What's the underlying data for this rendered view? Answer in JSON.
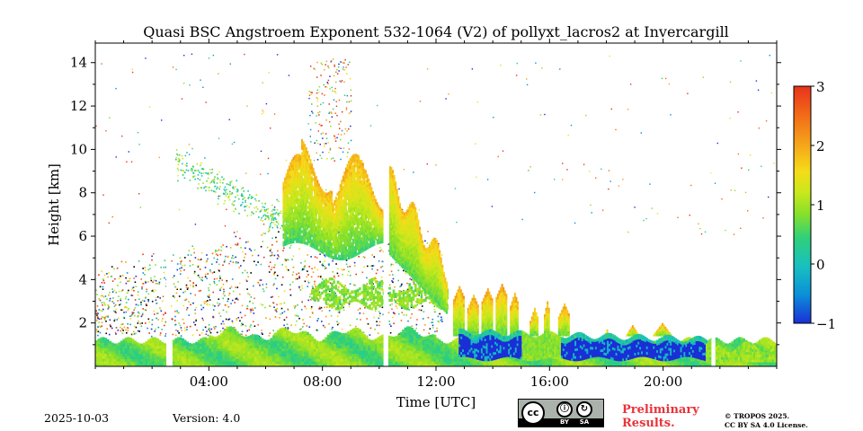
{
  "chart_data": {
    "type": "heatmap",
    "title": "Quasi BSC Angstroem Exponent 532-1064 (V2) of pollyxt_lacros2 at Invercargill",
    "xlabel": "Time [UTC]",
    "ylabel": "Height [km]",
    "x_range_hours": [
      0,
      24
    ],
    "y_range_km": [
      0,
      14.9
    ],
    "x_ticks": [
      {
        "value": 4,
        "label": "04:00"
      },
      {
        "value": 8,
        "label": "08:00"
      },
      {
        "value": 12,
        "label": "12:00"
      },
      {
        "value": 16,
        "label": "16:00"
      },
      {
        "value": 20,
        "label": "20:00"
      }
    ],
    "y_ticks": [
      {
        "value": 2,
        "label": "2"
      },
      {
        "value": 4,
        "label": "4"
      },
      {
        "value": 6,
        "label": "6"
      },
      {
        "value": 8,
        "label": "8"
      },
      {
        "value": 10,
        "label": "10"
      },
      {
        "value": 12,
        "label": "12"
      },
      {
        "value": 14,
        "label": "14"
      }
    ],
    "colorbar": {
      "range": [
        -1,
        3
      ],
      "ticks": [
        {
          "value": -1,
          "label": "−1"
        },
        {
          "value": 0,
          "label": "0"
        },
        {
          "value": 1,
          "label": "1"
        },
        {
          "value": 2,
          "label": "2"
        },
        {
          "value": 3,
          "label": "3"
        }
      ],
      "colormap": [
        "#1a2fd6",
        "#0b8fd8",
        "#18c0c0",
        "#2fd07a",
        "#86e02a",
        "#c8e81c",
        "#f5dc19",
        "#f5a21a",
        "#f26a18",
        "#e8321a"
      ]
    },
    "data_gaps_hours": [
      [
        2.5,
        2.65
      ],
      [
        10.15,
        10.3
      ],
      [
        21.7,
        21.8
      ]
    ],
    "regions": [
      {
        "name": "boundary-layer",
        "t": [
          0,
          24
        ],
        "h": [
          0,
          1.5
        ],
        "value": 0.9
      },
      {
        "name": "aerosol-layer-morning",
        "t": [
          6.6,
          10.1
        ],
        "h": [
          5.2,
          10.0
        ],
        "value": 1.3
      },
      {
        "name": "aerosol-layer-descending",
        "t": [
          10.3,
          12.3
        ],
        "h": [
          2.5,
          9.3
        ],
        "value": 1.2
      },
      {
        "name": "low-values-afternoon",
        "t": [
          12.8,
          21.5
        ],
        "h": [
          0.3,
          1.6
        ],
        "value": -1.0
      },
      {
        "name": "residual-cells",
        "t": [
          12.6,
          17.0
        ],
        "h": [
          0.5,
          3.9
        ],
        "value": 1.0
      }
    ]
  },
  "footer": {
    "date": "2025-10-03",
    "version": "Version: 4.0",
    "license_badge": {
      "main": "cc",
      "labels": [
        "BY",
        "SA"
      ]
    },
    "preliminary": "Preliminary Results.",
    "copyright_line1": "© TROPOS 2025.",
    "copyright_line2": "CC BY SA 4.0 License."
  }
}
